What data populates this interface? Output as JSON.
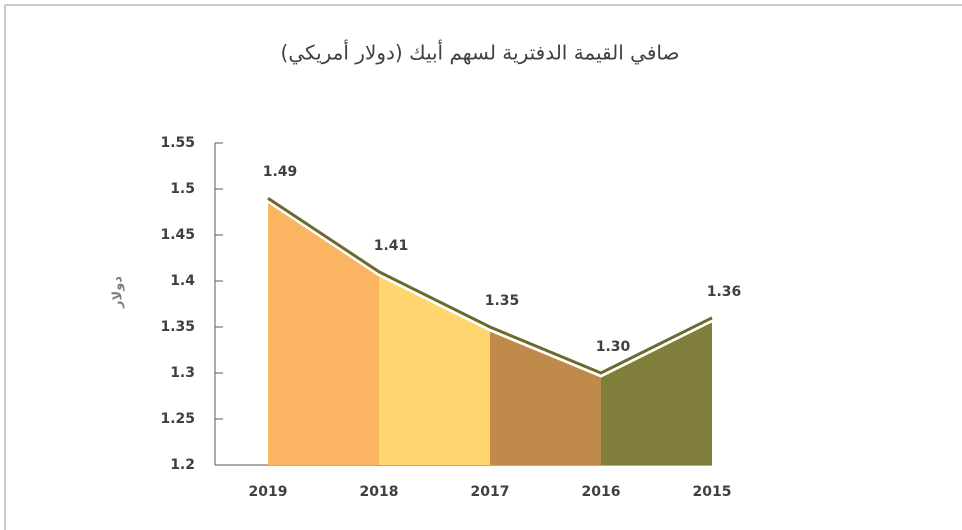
{
  "chart_data": {
    "type": "segmented_area",
    "title": "صافي القيمة الدفترية لسهم أبيك (دولار أمريكي)",
    "y_axis_label": "دولار",
    "categories": [
      "2019",
      "2018",
      "2017",
      "2016",
      "2015"
    ],
    "values": [
      1.49,
      1.41,
      1.35,
      1.3,
      1.36
    ],
    "value_labels": [
      "1.49",
      "1.41",
      "1.35",
      "1.30",
      "1.36"
    ],
    "segment_colors": [
      "#fbb562",
      "#fed56f",
      "#c08a4a",
      "#7f7f3b"
    ],
    "line_color": "#6b6b2b",
    "ylim": [
      1.2,
      1.55
    ],
    "yticks": [
      1.2,
      1.25,
      1.3,
      1.35,
      1.4,
      1.45,
      1.5,
      1.55
    ]
  }
}
